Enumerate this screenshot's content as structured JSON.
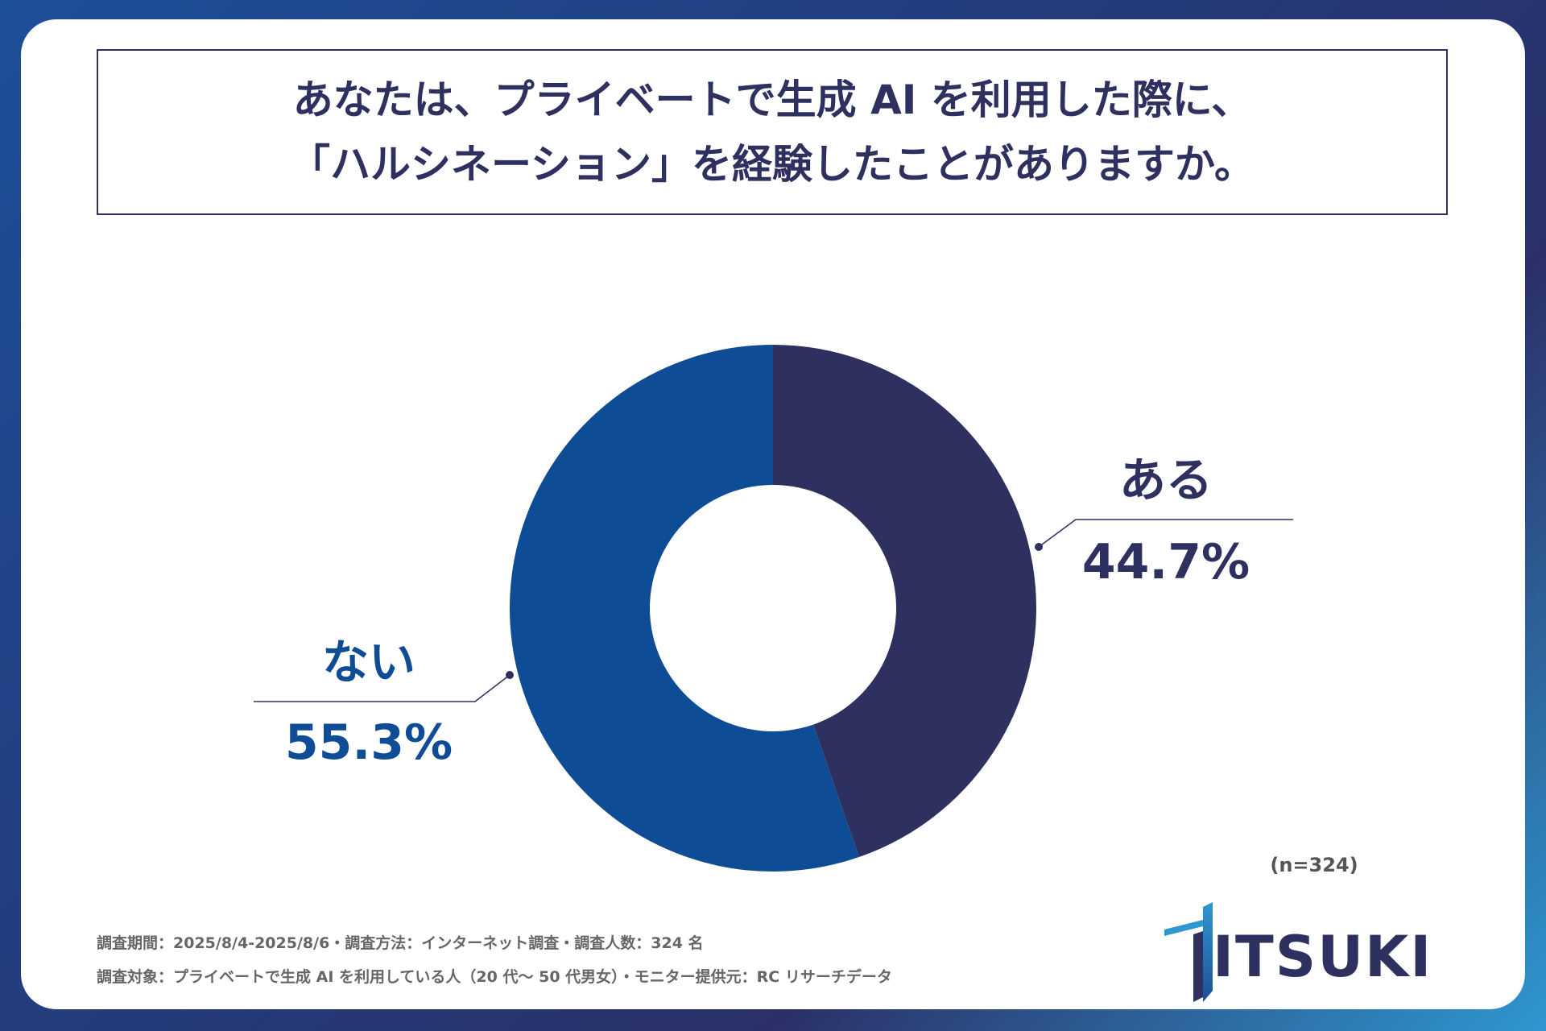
{
  "title": {
    "line1": "あなたは、プライベートで生成 AI を利用した際に、",
    "line2": "「ハルシネーション」を経験したことがありますか。"
  },
  "chart_data": {
    "type": "pie",
    "style": "donut",
    "n_label": "(n=324)",
    "slices": [
      {
        "label": "ある",
        "value": 44.7,
        "value_label": "44.7%",
        "color": "#2e3160"
      },
      {
        "label": "ない",
        "value": 55.3,
        "value_label": "55.3%",
        "color": "#0f4c96"
      }
    ]
  },
  "footnotes": {
    "line1": "調査期間：2025/8/4-2025/8/6・調査方法：インターネット調査・調査人数：324 名",
    "line2": "調査対象：プライベートで生成 AI を利用している人（20 代〜 50 代男女）・モニター提供元：RC リサーチデータ"
  },
  "brand": {
    "logo_text": "ITSUKI",
    "colors": {
      "navy": "#2e3160",
      "blue": "#0f4c96",
      "accent": "#2f98d0"
    }
  }
}
